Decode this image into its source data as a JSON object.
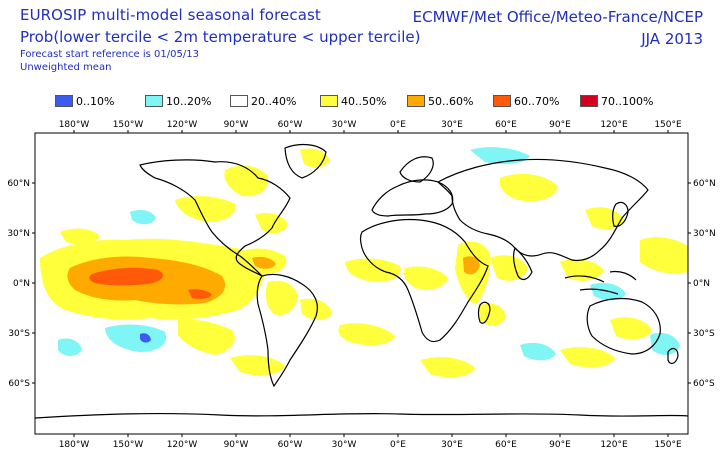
{
  "header": {
    "title": "EUROSIP multi-model seasonal forecast",
    "subtitle": "Prob(lower tercile < 2m temperature < upper tercile)",
    "reference": "Forecast start reference is 01/05/13",
    "mean": "Unweighted mean",
    "centres": "ECMWF/Met Office/Meteo-France/NCEP",
    "season": "JJA 2013"
  },
  "legend": [
    {
      "label": "0..10%",
      "color": "#3c5af0"
    },
    {
      "label": "10..20%",
      "color": "#7ff5f5"
    },
    {
      "label": "20..40%",
      "color": "#ffffff"
    },
    {
      "label": "40..50%",
      "color": "#ffff3c"
    },
    {
      "label": "50..60%",
      "color": "#ffaa00"
    },
    {
      "label": "60..70%",
      "color": "#ff5a0a"
    },
    {
      "label": "70..100%",
      "color": "#d2001e"
    }
  ],
  "axes": {
    "lon_labels": [
      "180°W",
      "150°W",
      "120°W",
      "90°W",
      "60°W",
      "30°W",
      "0°E",
      "30°E",
      "60°E",
      "90°E",
      "120°E",
      "150°E"
    ],
    "lat_labels_left": [
      "60°N",
      "30°N",
      "0°N",
      "30°S",
      "60°S"
    ],
    "lat_labels_right": [
      "60°N",
      "30°N",
      "0°N",
      "30°S",
      "60°S"
    ]
  },
  "colors": {
    "title": "#1f2fbf",
    "coast": "#000000"
  }
}
